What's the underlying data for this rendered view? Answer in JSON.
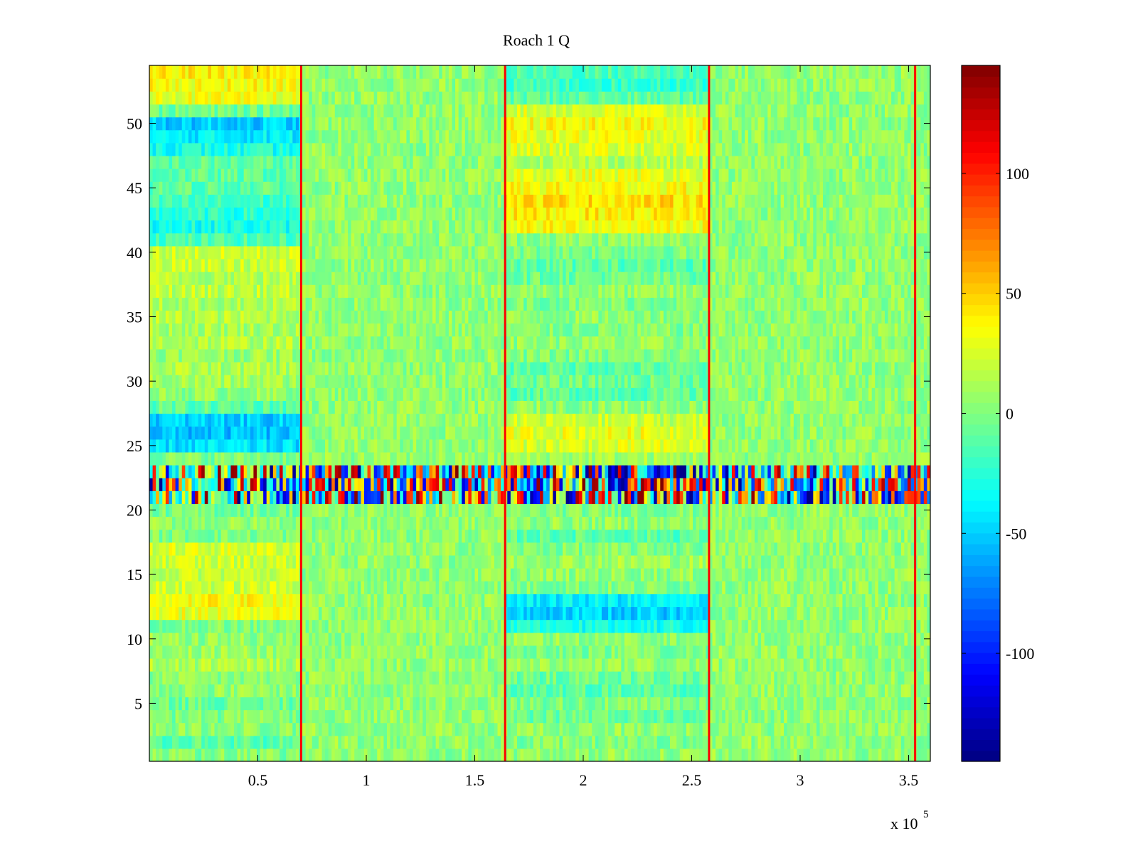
{
  "chart_data": {
    "type": "heatmap",
    "title": "Roach 1 Q",
    "xlabel": "",
    "ylabel": "",
    "x_exponent_label": "x 10",
    "x_exponent_power": "5",
    "xlim": [
      0.0,
      3.6
    ],
    "ylim": [
      0.5,
      54.5
    ],
    "xticks": [
      0.5,
      1,
      1.5,
      2,
      2.5,
      3,
      3.5
    ],
    "xtick_labels": [
      "0.5",
      "1",
      "1.5",
      "2",
      "2.5",
      "3",
      "3.5"
    ],
    "yticks": [
      5,
      10,
      15,
      20,
      25,
      30,
      35,
      40,
      45,
      50
    ],
    "ytick_labels": [
      "5",
      "10",
      "15",
      "20",
      "25",
      "30",
      "35",
      "40",
      "45",
      "50"
    ],
    "colormap": "jet",
    "clim": [
      -145,
      145
    ],
    "colorbar_ticks": [
      -100,
      -50,
      0,
      50,
      100
    ],
    "colorbar_tick_labels": [
      "-100",
      "-50",
      "0",
      "50",
      "100"
    ],
    "n_rows": 54,
    "segment_boundaries_x10e5": [
      0.0,
      0.7,
      1.64,
      2.58,
      3.53,
      3.6
    ],
    "vertical_spikes_x10e5": [
      0.7,
      1.64,
      2.58,
      3.53
    ],
    "segment_row_means": [
      {
        "segment": 1,
        "x_range": [
          0.0,
          0.7
        ],
        "rows": {
          "1": 0,
          "2": -10,
          "3": 3,
          "4": 0,
          "5": -5,
          "6": 5,
          "7": 2,
          "8": 12,
          "9": 8,
          "10": 5,
          "11": 0,
          "12": 30,
          "13": 35,
          "14": 22,
          "15": 20,
          "16": 22,
          "17": 25,
          "18": 0,
          "19": 5,
          "20": -3,
          "21": 0,
          "22": 5,
          "23": 0,
          "24": 0,
          "25": -45,
          "26": -55,
          "27": -50,
          "28": -10,
          "29": 5,
          "30": 10,
          "31": 12,
          "32": 8,
          "33": 15,
          "34": 12,
          "35": 15,
          "36": 12,
          "37": 18,
          "38": 15,
          "39": 20,
          "40": 22,
          "41": -15,
          "42": -30,
          "43": -25,
          "44": -20,
          "45": -10,
          "46": -10,
          "47": -10,
          "48": -30,
          "49": -40,
          "50": -50,
          "51": -5,
          "52": 30,
          "53": 35,
          "54": 40
        }
      },
      {
        "segment": 2,
        "x_range": [
          0.7,
          1.64
        ],
        "rows": {
          "1": 5,
          "2": 5,
          "3": 5,
          "4": 5,
          "5": 5,
          "6": 5,
          "7": 5,
          "8": 5,
          "9": 5,
          "10": 5,
          "11": 5,
          "12": 5,
          "13": 5,
          "14": 5,
          "15": 5,
          "16": 5,
          "17": 5,
          "18": 5,
          "19": 5,
          "20": 5,
          "21": 0,
          "22": 5,
          "23": 0,
          "24": 5,
          "25": 5,
          "26": 5,
          "27": 5,
          "28": 5,
          "29": 5,
          "30": 5,
          "31": 5,
          "32": 5,
          "33": 5,
          "34": 5,
          "35": 5,
          "36": 5,
          "37": 5,
          "38": 5,
          "39": 5,
          "40": 5,
          "41": 5,
          "42": 5,
          "43": 5,
          "44": 5,
          "45": 5,
          "46": 5,
          "47": 5,
          "48": 5,
          "49": 5,
          "50": 5,
          "51": 5,
          "52": 5,
          "53": 5,
          "54": 5
        }
      },
      {
        "segment": 3,
        "x_range": [
          1.64,
          2.58
        ],
        "rows": {
          "1": 5,
          "2": 0,
          "3": 5,
          "4": -5,
          "5": 0,
          "6": -10,
          "7": -5,
          "8": 5,
          "9": 0,
          "10": 5,
          "11": -30,
          "12": -50,
          "13": -40,
          "14": 0,
          "15": 5,
          "16": 10,
          "17": 0,
          "18": -10,
          "19": 5,
          "20": 0,
          "21": 0,
          "22": 5,
          "23": 0,
          "24": 10,
          "25": 25,
          "26": 30,
          "27": 20,
          "28": 5,
          "29": -10,
          "30": -5,
          "31": -10,
          "32": 0,
          "33": 5,
          "34": 0,
          "35": 5,
          "36": 0,
          "37": 5,
          "38": -5,
          "39": -10,
          "40": 0,
          "41": 5,
          "42": 35,
          "43": 40,
          "44": 45,
          "45": 35,
          "46": 30,
          "47": 15,
          "48": 25,
          "49": 30,
          "50": 35,
          "51": 25,
          "52": -10,
          "53": -20,
          "54": -15
        }
      },
      {
        "segment": 4,
        "x_range": [
          2.58,
          3.6
        ],
        "rows": {
          "1": 5,
          "2": 5,
          "3": 5,
          "4": 5,
          "5": 5,
          "6": 5,
          "7": 5,
          "8": 5,
          "9": 5,
          "10": 5,
          "11": 5,
          "12": 5,
          "13": 5,
          "14": 5,
          "15": 5,
          "16": 5,
          "17": 5,
          "18": 5,
          "19": 5,
          "20": 5,
          "21": -10,
          "22": 5,
          "23": 0,
          "24": 5,
          "25": 5,
          "26": 5,
          "27": 5,
          "28": 5,
          "29": 5,
          "30": 5,
          "31": 5,
          "32": 5,
          "33": 5,
          "34": 5,
          "35": 5,
          "36": 5,
          "37": 5,
          "38": 5,
          "39": 5,
          "40": 5,
          "41": 5,
          "42": 5,
          "43": 5,
          "44": 5,
          "45": 5,
          "46": 5,
          "47": 5,
          "48": 5,
          "49": 5,
          "50": 5,
          "51": 5,
          "52": 5,
          "53": 5,
          "54": 5
        }
      }
    ],
    "high_variance_rows": [
      21,
      22,
      23
    ]
  }
}
